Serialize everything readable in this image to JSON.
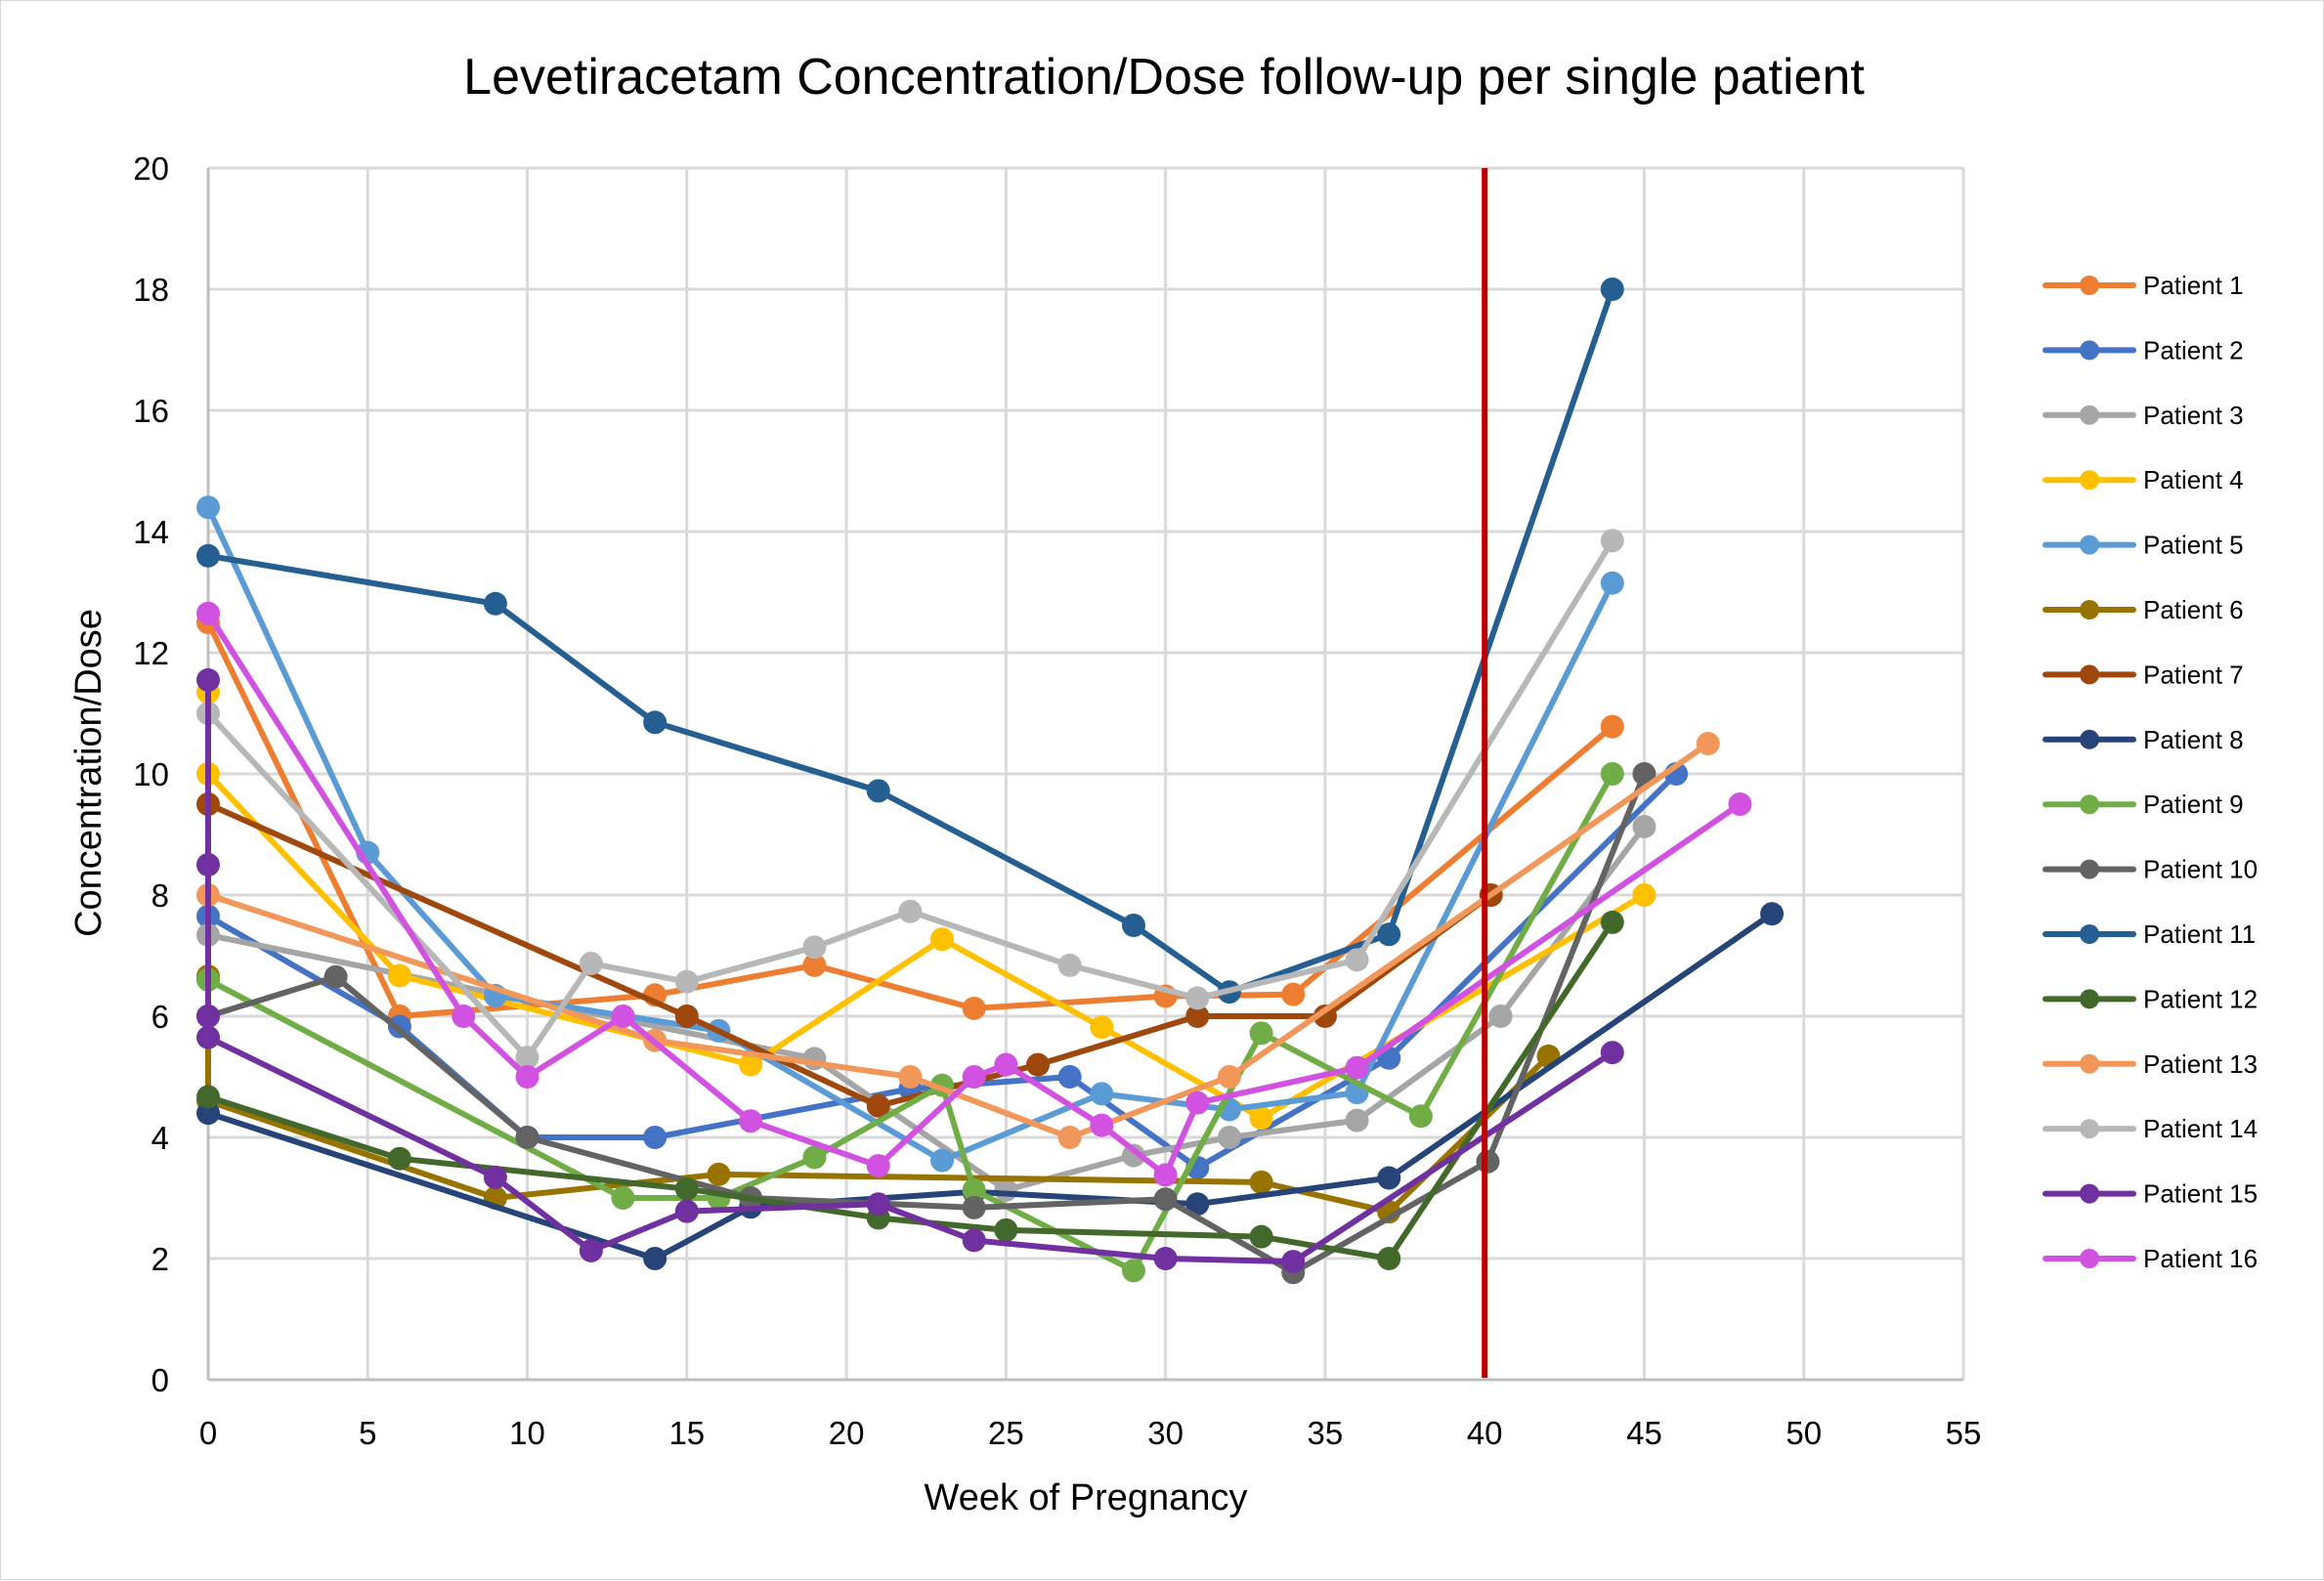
{
  "chart_data": {
    "type": "line",
    "title": "Levetiracetam Concentration/Dose follow-up per single patient",
    "xlabel": "Week of Pregnancy",
    "ylabel": "Concentration/Dose",
    "xlim": [
      0,
      55
    ],
    "ylim": [
      0,
      20
    ],
    "xticks": [
      0,
      5,
      10,
      15,
      20,
      25,
      30,
      35,
      40,
      45,
      50,
      55
    ],
    "yticks": [
      0,
      2,
      4,
      6,
      8,
      10,
      12,
      14,
      16,
      18,
      20
    ],
    "grid": true,
    "legend_position": "right",
    "reference_line": {
      "axis": "x",
      "value": 40,
      "color": "#C00000"
    },
    "series": [
      {
        "name": "Patient 1",
        "color": "#ED7D31",
        "points": [
          [
            0,
            12.5
          ],
          [
            6,
            6.0
          ],
          [
            14,
            6.35
          ],
          [
            19,
            6.84
          ],
          [
            24,
            6.13
          ],
          [
            30,
            6.33
          ],
          [
            34,
            6.36
          ],
          [
            44,
            10.78
          ]
        ]
      },
      {
        "name": "Patient 2",
        "color": "#4472C4",
        "points": [
          [
            0,
            7.65
          ],
          [
            6,
            5.83
          ],
          [
            10,
            4.0
          ],
          [
            14,
            4.0
          ],
          [
            22,
            4.8
          ],
          [
            27,
            5.0
          ],
          [
            31,
            3.5
          ],
          [
            37,
            5.31
          ],
          [
            46,
            10.0
          ]
        ]
      },
      {
        "name": "Patient 3",
        "color": "#A5A5A5",
        "points": [
          [
            0,
            7.34
          ],
          [
            19,
            5.3
          ],
          [
            25,
            3.13
          ],
          [
            29,
            3.7
          ],
          [
            32,
            4.0
          ],
          [
            36,
            4.28
          ],
          [
            40.5,
            6.0
          ],
          [
            45,
            9.13
          ]
        ]
      },
      {
        "name": "Patient 4",
        "color": "#FFC000",
        "points": [
          [
            0,
            11.35
          ],
          [
            0,
            10.0
          ],
          [
            6,
            6.67
          ],
          [
            17,
            5.2
          ],
          [
            23,
            7.27
          ],
          [
            28,
            5.82
          ],
          [
            33,
            4.32
          ],
          [
            45,
            8.0
          ]
        ]
      },
      {
        "name": "Patient 5",
        "color": "#5B9BD5",
        "points": [
          [
            0,
            14.4
          ],
          [
            5,
            8.7
          ],
          [
            9,
            6.34
          ],
          [
            16,
            5.76
          ],
          [
            23,
            3.62
          ],
          [
            28,
            4.72
          ],
          [
            32,
            4.46
          ],
          [
            36,
            4.74
          ],
          [
            44,
            13.15
          ]
        ]
      },
      {
        "name": "Patient 6",
        "color": "#997300",
        "points": [
          [
            0,
            6.66
          ],
          [
            0,
            4.6
          ],
          [
            9,
            3.0
          ],
          [
            16,
            3.39
          ],
          [
            33,
            3.26
          ],
          [
            37,
            2.77
          ],
          [
            42,
            5.34
          ]
        ]
      },
      {
        "name": "Patient 7",
        "color": "#9E480E",
        "points": [
          [
            0,
            9.5
          ],
          [
            15,
            6.0
          ],
          [
            21,
            4.52
          ],
          [
            26,
            5.2
          ],
          [
            31,
            6.0
          ],
          [
            35,
            6.0
          ],
          [
            40.2,
            8.0
          ]
        ]
      },
      {
        "name": "Patient 8",
        "color": "#264478",
        "points": [
          [
            0,
            4.4
          ],
          [
            14,
            2.0
          ],
          [
            17,
            2.85
          ],
          [
            24,
            3.1
          ],
          [
            31,
            2.9
          ],
          [
            37,
            3.33
          ],
          [
            49,
            7.69
          ]
        ]
      },
      {
        "name": "Patient 9",
        "color": "#70AD47",
        "points": [
          [
            0,
            6.6
          ],
          [
            13,
            3.0
          ],
          [
            16,
            3.0
          ],
          [
            19,
            3.67
          ],
          [
            23,
            4.86
          ],
          [
            24,
            3.13
          ],
          [
            29,
            1.8
          ],
          [
            33,
            5.72
          ],
          [
            38,
            4.35
          ],
          [
            44,
            10.0
          ]
        ]
      },
      {
        "name": "Patient 10",
        "color": "#636363",
        "points": [
          [
            0,
            6.0
          ],
          [
            4,
            6.65
          ],
          [
            10,
            4.0
          ],
          [
            17,
            3.0
          ],
          [
            24,
            2.84
          ],
          [
            30,
            2.98
          ],
          [
            34,
            1.77
          ],
          [
            40.1,
            3.6
          ],
          [
            45,
            10.0
          ]
        ]
      },
      {
        "name": "Patient 11",
        "color": "#255E91",
        "points": [
          [
            0,
            13.6
          ],
          [
            9,
            12.81
          ],
          [
            14,
            10.85
          ],
          [
            21,
            9.72
          ],
          [
            29,
            7.5
          ],
          [
            32,
            6.4
          ],
          [
            37,
            7.35
          ],
          [
            44,
            18.0
          ]
        ]
      },
      {
        "name": "Patient 12",
        "color": "#43682B",
        "points": [
          [
            0,
            4.67
          ],
          [
            6,
            3.65
          ],
          [
            15,
            3.15
          ],
          [
            21,
            2.67
          ],
          [
            25,
            2.47
          ],
          [
            33,
            2.36
          ],
          [
            37,
            2.0
          ],
          [
            44,
            7.55
          ]
        ]
      },
      {
        "name": "Patient 13",
        "color": "#F1975A",
        "points": [
          [
            0,
            8.0
          ],
          [
            14,
            5.6
          ],
          [
            22,
            5.0
          ],
          [
            27,
            4.0
          ],
          [
            32,
            5.0
          ],
          [
            47,
            10.5
          ]
        ]
      },
      {
        "name": "Patient 14",
        "color": "#B7B7B7",
        "points": [
          [
            0,
            11.0
          ],
          [
            10,
            5.32
          ],
          [
            12,
            6.87
          ],
          [
            15,
            6.57
          ],
          [
            19,
            7.14
          ],
          [
            22,
            7.73
          ],
          [
            27,
            6.84
          ],
          [
            31,
            6.3
          ],
          [
            36,
            6.93
          ],
          [
            44,
            13.85
          ]
        ]
      },
      {
        "name": "Patient 15",
        "color": "#7030A0",
        "points": [
          [
            0,
            11.55
          ],
          [
            0,
            8.5
          ],
          [
            0,
            6.0
          ],
          [
            0,
            5.65
          ],
          [
            9,
            3.34
          ],
          [
            12,
            2.13
          ],
          [
            15,
            2.78
          ],
          [
            21,
            2.9
          ],
          [
            24,
            2.3
          ],
          [
            30,
            2.0
          ],
          [
            34,
            1.95
          ],
          [
            44,
            5.4
          ]
        ]
      },
      {
        "name": "Patient 16",
        "color": "#D152E0",
        "points": [
          [
            0,
            12.65
          ],
          [
            8,
            6.0
          ],
          [
            10,
            5.0
          ],
          [
            13,
            6.0
          ],
          [
            17,
            4.27
          ],
          [
            21,
            3.53
          ],
          [
            24,
            5.0
          ],
          [
            25,
            5.2
          ],
          [
            28,
            4.2
          ],
          [
            30,
            3.38
          ],
          [
            31,
            4.57
          ],
          [
            36,
            5.15
          ],
          [
            48,
            9.5
          ]
        ]
      }
    ]
  }
}
